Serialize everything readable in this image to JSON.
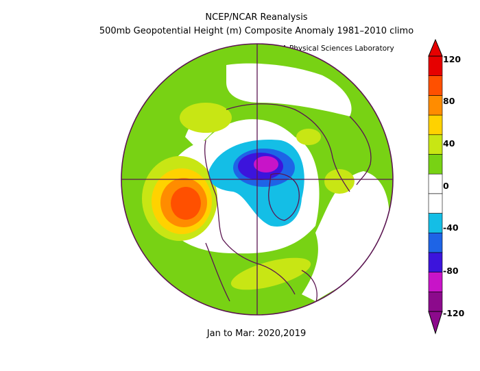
{
  "header": {
    "title": "NCEP/NCAR Reanalysis",
    "subtitle": "500mb Geopotential Height (m) Composite Anomaly 1981–2010 climo",
    "credit": "NOAA Physical Sciences Laboratory"
  },
  "footer": {
    "period": "Jan to Mar: 2020,2019"
  },
  "colorbar": {
    "ticks": [
      "120",
      "80",
      "40",
      "0",
      "-40",
      "-80",
      "-120"
    ],
    "colors": [
      "#8c0a8c",
      "#c814c8",
      "#3c14dc",
      "#1e64e6",
      "#14bee6",
      "#ffffff",
      "#ffffff",
      "#78d214",
      "#c8e614",
      "#ffd200",
      "#ff8c00",
      "#ff5000",
      "#e60000"
    ]
  },
  "map": {
    "projection": "north-polar-stereographic",
    "colors": {
      "land": "#5a1450",
      "green": "#78d214",
      "lime": "#c8e614",
      "yellow": "#ffd200",
      "orange": "#ff8c00",
      "red": "#ff5000",
      "cyan": "#14bee6",
      "blue": "#1e64e6",
      "indigo": "#3c14dc",
      "magenta": "#c814c8"
    }
  }
}
